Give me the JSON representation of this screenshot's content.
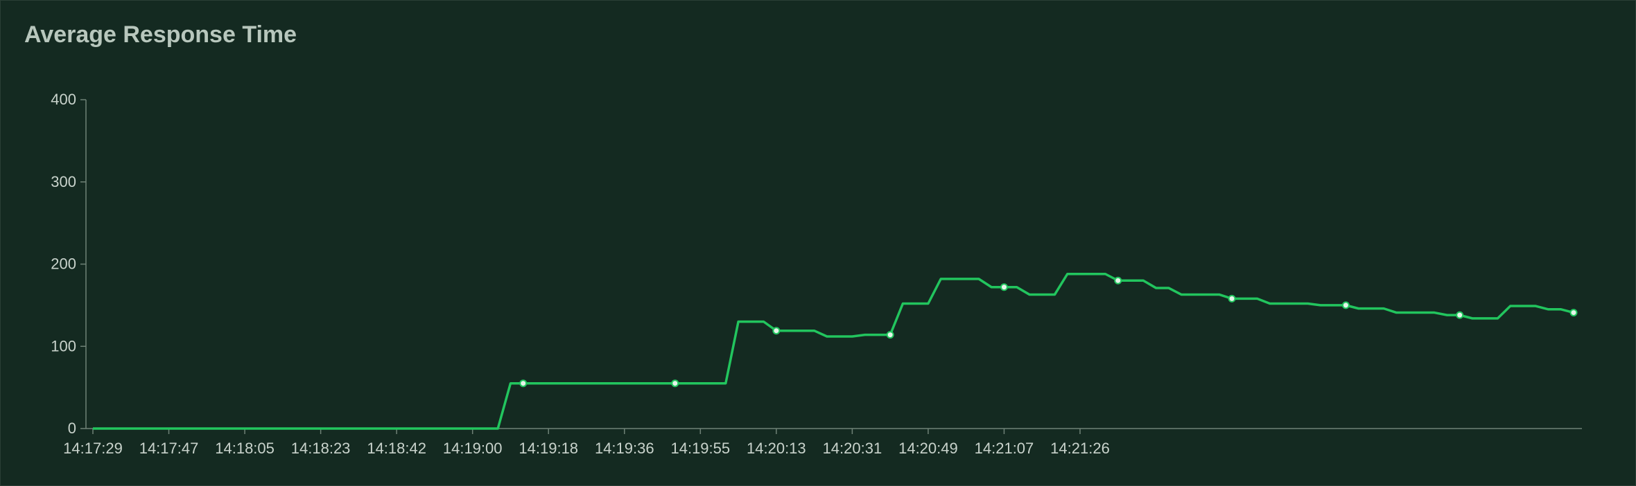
{
  "chart_data": {
    "type": "line",
    "title": "Average Response Time",
    "xlabel": "",
    "ylabel": "",
    "ylim": [
      0,
      400
    ],
    "yticks": [
      0,
      100,
      200,
      300,
      400
    ],
    "xtick_labels": [
      "14:17:29",
      "14:17:47",
      "14:18:05",
      "14:18:23",
      "14:18:42",
      "14:19:00",
      "14:19:18",
      "14:19:36",
      "14:19:55",
      "14:20:13",
      "14:20:31",
      "14:20:49",
      "14:21:07",
      "14:21:26"
    ],
    "x_start": "14:17:29",
    "x_step_seconds": 3,
    "grid": false,
    "legend": "none",
    "series": [
      {
        "color": "#22c55e",
        "values": [
          0,
          0,
          0,
          0,
          0,
          0,
          0,
          0,
          0,
          0,
          0,
          0,
          0,
          0,
          0,
          0,
          0,
          0,
          0,
          0,
          0,
          0,
          0,
          0,
          0,
          0,
          0,
          0,
          0,
          0,
          0,
          0,
          0,
          55,
          55,
          55,
          55,
          55,
          55,
          55,
          55,
          55,
          55,
          55,
          55,
          55,
          55,
          55,
          55,
          55,
          55,
          130,
          130,
          130,
          119,
          119,
          119,
          119,
          112,
          112,
          112,
          114,
          114,
          114,
          152,
          152,
          152,
          182,
          182,
          182,
          182,
          172,
          172,
          172,
          163,
          163,
          163,
          188,
          188,
          188,
          188,
          180,
          180,
          180,
          171,
          171,
          163,
          163,
          163,
          163,
          158,
          158,
          158,
          152,
          152,
          152,
          152,
          150,
          150,
          150,
          146,
          146,
          146,
          141,
          141,
          141,
          141,
          138,
          138,
          134,
          134,
          134,
          149,
          149,
          149,
          145,
          145,
          141
        ],
        "markers": [
          34,
          46,
          54,
          63,
          72,
          81,
          90,
          99,
          108,
          117
        ]
      }
    ]
  }
}
